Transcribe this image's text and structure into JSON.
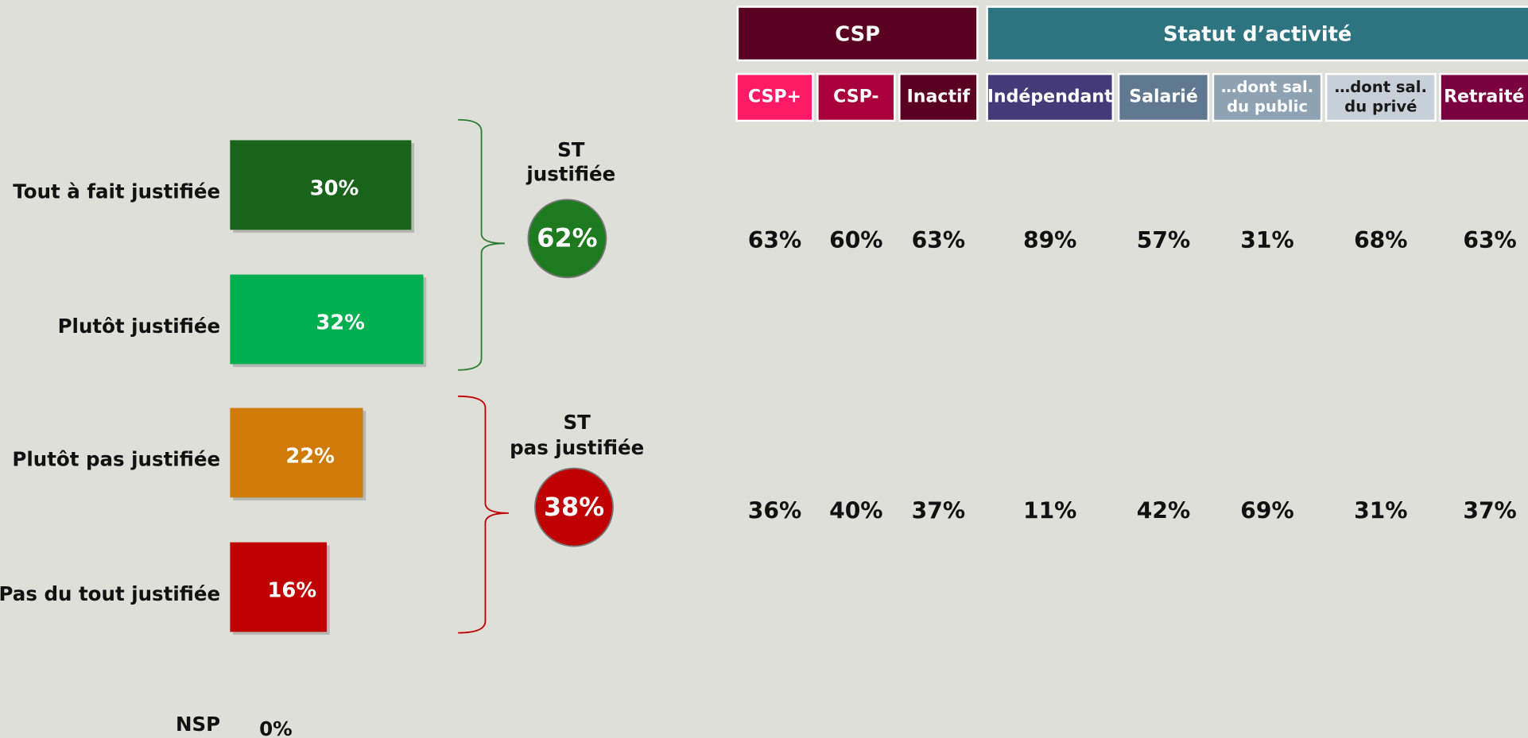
{
  "chart_data": {
    "type": "bar",
    "orientation": "horizontal",
    "categories": [
      "Tout à fait justifiée",
      "Plutôt justifiée",
      "Plutôt pas justifiée",
      "Pas du tout justifiée"
    ],
    "values": [
      30,
      32,
      22,
      16
    ],
    "value_labels": [
      "30%",
      "32%",
      "22%",
      "16%"
    ],
    "colors": [
      "#1a631a",
      "#00b050",
      "#d07a08",
      "#c00000"
    ],
    "xlim": [
      0,
      100
    ],
    "nsp": {
      "label": "NSP",
      "value": 0,
      "value_label": "0%"
    },
    "subtotals": [
      {
        "lines": [
          "ST",
          "justifiée"
        ],
        "value": 62,
        "value_label": "62%",
        "color": "#1e7a1e",
        "brace_color": "#2e7d32"
      },
      {
        "lines": [
          "ST",
          "pas justifiée"
        ],
        "value": 38,
        "value_label": "38%",
        "color": "#c00000",
        "brace_color": "#c00000"
      }
    ],
    "table": {
      "groups": [
        {
          "name": "CSP",
          "color": "#5a0020",
          "columns": [
            {
              "lines": [
                "CSP+"
              ],
              "color": "#ff1a66",
              "text_color": "#ffffff"
            },
            {
              "lines": [
                "CSP-"
              ],
              "color": "#a8003a",
              "text_color": "#ffffff"
            },
            {
              "lines": [
                "Inactif"
              ],
              "color": "#5a0020",
              "text_color": "#ffffff"
            }
          ]
        },
        {
          "name": "Statut d’activité",
          "color": "#2e7480",
          "columns": [
            {
              "lines": [
                "Indépendant"
              ],
              "color": "#443a78",
              "text_color": "#ffffff"
            },
            {
              "lines": [
                "Salarié"
              ],
              "color": "#607890",
              "text_color": "#ffffff"
            },
            {
              "lines": [
                "…dont sal.",
                "du public"
              ],
              "color": "#8fa2b4",
              "text_color": "#ffffff"
            },
            {
              "lines": [
                "…dont sal.",
                "du privé"
              ],
              "color": "#c7d0d8",
              "text_color": "#1a1a1a"
            },
            {
              "lines": [
                "Retraité"
              ],
              "color": "#7a0040",
              "text_color": "#ffffff"
            }
          ]
        }
      ],
      "rows": [
        [
          "63%",
          "60%",
          "63%",
          "89%",
          "57%",
          "31%",
          "68%",
          "63%"
        ],
        [
          "36%",
          "40%",
          "37%",
          "11%",
          "42%",
          "69%",
          "31%",
          "37%"
        ]
      ]
    }
  }
}
